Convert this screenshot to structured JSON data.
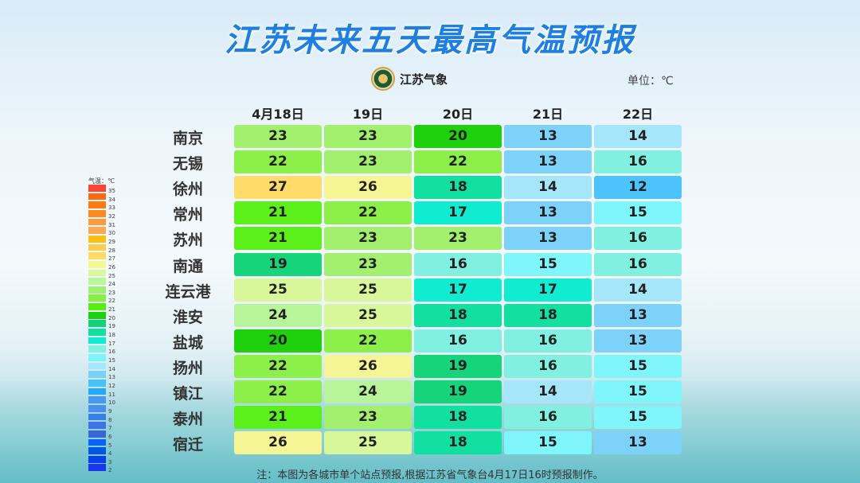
{
  "title": "江苏未来五天最高气温预报",
  "logo_text": "江苏气象",
  "unit": "单位：℃",
  "dates": [
    "4月18日",
    "19日",
    "20日",
    "21日",
    "22日"
  ],
  "rows": [
    {
      "city": "南京",
      "temps": [
        23,
        23,
        20,
        13,
        14
      ]
    },
    {
      "city": "无锡",
      "temps": [
        22,
        23,
        22,
        13,
        16
      ]
    },
    {
      "city": "徐州",
      "temps": [
        27,
        26,
        18,
        14,
        12
      ]
    },
    {
      "city": "常州",
      "temps": [
        21,
        22,
        17,
        13,
        15
      ]
    },
    {
      "city": "苏州",
      "temps": [
        21,
        23,
        23,
        13,
        16
      ]
    },
    {
      "city": "南通",
      "temps": [
        19,
        23,
        16,
        15,
        16
      ]
    },
    {
      "city": "连云港",
      "temps": [
        25,
        25,
        17,
        17,
        14
      ]
    },
    {
      "city": "淮安",
      "temps": [
        24,
        25,
        18,
        18,
        13
      ]
    },
    {
      "city": "盐城",
      "temps": [
        20,
        22,
        16,
        16,
        13
      ]
    },
    {
      "city": "扬州",
      "temps": [
        22,
        26,
        19,
        16,
        15
      ]
    },
    {
      "city": "镇江",
      "temps": [
        22,
        24,
        19,
        14,
        15
      ]
    },
    {
      "city": "泰州",
      "temps": [
        21,
        23,
        18,
        16,
        15
      ]
    },
    {
      "city": "宿迁",
      "temps": [
        26,
        25,
        18,
        15,
        13
      ]
    }
  ],
  "legend": {
    "title": "气温：℃",
    "labels": [
      "35",
      "34",
      "33",
      "32",
      "31",
      "30",
      "29",
      "28",
      "27",
      "26",
      "25",
      "24",
      "23",
      "22",
      "21",
      "20",
      "19",
      "18",
      "17",
      "16",
      "15",
      "14",
      "13",
      "12",
      "11",
      "10",
      "9",
      "8",
      "7",
      "6",
      "5",
      "4",
      "3",
      "2"
    ],
    "colors": [
      "#ff4433",
      "#ff6a10",
      "#ff7a10",
      "#ff8a20",
      "#ff9a3a",
      "#ffa850",
      "#ffbf10",
      "#ffcc50",
      "#ffdc60",
      "#f4f890",
      "#d8f89a",
      "#b8f79a",
      "#a0f070",
      "#88ee48",
      "#55f010",
      "#1ccf10",
      "#10d27a",
      "#10e0a0",
      "#10ecd0",
      "#80f2e2",
      "#7cf6fc",
      "#a4e6fb",
      "#78d2f8",
      "#46c2fa",
      "#26a8fa",
      "#4898f2",
      "#4a8ef0",
      "#3880e8",
      "#3a74e8",
      "#3868d8",
      "#0c62f4",
      "#0456e6",
      "#083ef0",
      "#1c36f0"
    ]
  },
  "cell_colors": {
    "12": "#4cc3fa",
    "13": "#7cd2f8",
    "14": "#a6e6fb",
    "15": "#7ef6fc",
    "16": "#82f0e0",
    "17": "#10ecd0",
    "18": "#12e0a0",
    "19": "#16d47a",
    "20": "#1fd10d",
    "21": "#5cf01a",
    "22": "#8cef4a",
    "23": "#a3ef6e",
    "24": "#b8f59a",
    "25": "#d8f79a",
    "26": "#f5f595",
    "27": "#ffdb6a"
  },
  "note": "注：本图为各城市单个站点预报,根据江苏省气象台4月17日16时预报制作。"
}
